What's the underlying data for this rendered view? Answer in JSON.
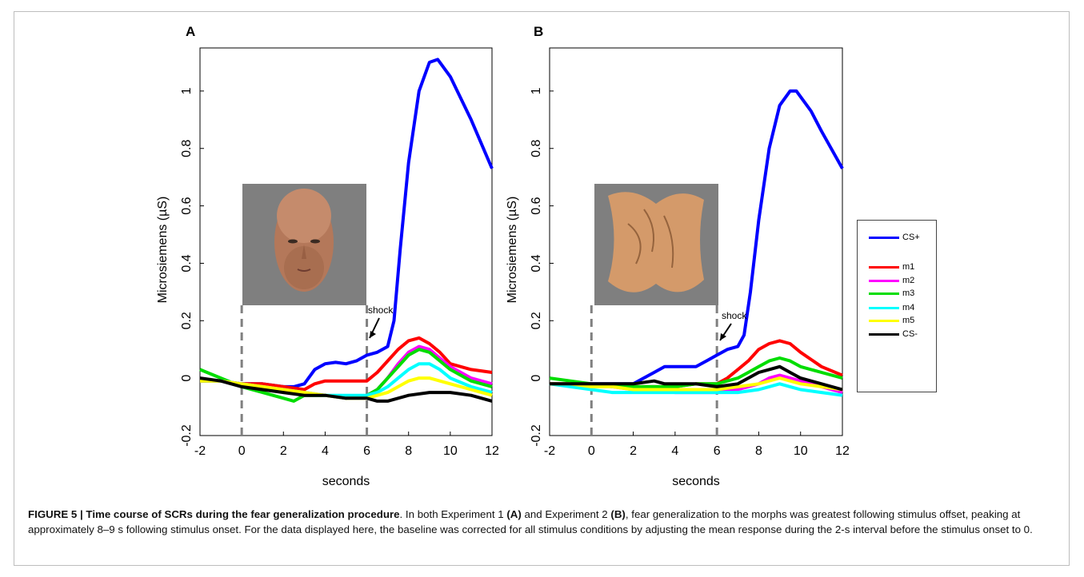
{
  "panels": [
    {
      "letter": "A"
    },
    {
      "letter": "B"
    }
  ],
  "legend": [
    {
      "label": "CS+",
      "color": "#0000ff"
    },
    {
      "label": "m1",
      "color": "#ff0000"
    },
    {
      "label": "m2",
      "color": "#ff00ff"
    },
    {
      "label": "m3",
      "color": "#00dd00"
    },
    {
      "label": "m4",
      "color": "#00ffff"
    },
    {
      "label": "m5",
      "color": "#ffff00"
    },
    {
      "label": "CS-",
      "color": "#000000"
    }
  ],
  "caption": {
    "figure_label": "FIGURE 5 | Time course of SCRs during the fear generalization procedure",
    "t1": ". In both Experiment 1 ",
    "a": "(A)",
    "t2": " and Experiment 2 ",
    "b": "(B)",
    "t3": ", fear generalization to the morphs was greatest following stimulus offset, peaking at approximately 8–9 s following stimulus onset. For the data displayed here, the baseline was corrected for all stimulus conditions by adjusting the mean response during the 2-s interval before the stimulus onset to 0."
  },
  "chart_data": [
    {
      "panel": "A",
      "type": "line",
      "xlabel": "seconds",
      "ylabel": "Microsiemens (µS)",
      "xlim": [
        -2,
        12
      ],
      "ylim": [
        -0.2,
        1.15
      ],
      "xticks": [
        -2,
        0,
        2,
        4,
        6,
        8,
        10,
        12
      ],
      "yticks": [
        -0.2,
        0,
        0.2,
        0.4,
        0.6,
        0.8,
        1
      ],
      "vlines": [
        0,
        6
      ],
      "annotation": "shock",
      "inset": "face",
      "series": [
        {
          "name": "CS+",
          "color": "#0000ff",
          "x": [
            -2,
            -1,
            0,
            1,
            2,
            2.5,
            3,
            3.5,
            4,
            4.5,
            5,
            5.5,
            6,
            6.5,
            7,
            7.3,
            7.6,
            8,
            8.5,
            9,
            9.4,
            10,
            11,
            12
          ],
          "y": [
            -0.01,
            -0.01,
            -0.02,
            -0.02,
            -0.03,
            -0.03,
            -0.02,
            0.03,
            0.05,
            0.055,
            0.05,
            0.06,
            0.08,
            0.09,
            0.11,
            0.2,
            0.45,
            0.75,
            1.0,
            1.1,
            1.11,
            1.05,
            0.9,
            0.73
          ]
        },
        {
          "name": "m1",
          "color": "#ff0000",
          "x": [
            -2,
            -1,
            0,
            1,
            2,
            3,
            3.5,
            4,
            5,
            6,
            6.5,
            7,
            7.5,
            8,
            8.5,
            9,
            9.5,
            10,
            11,
            12
          ],
          "y": [
            -0.01,
            -0.01,
            -0.02,
            -0.02,
            -0.03,
            -0.04,
            -0.02,
            -0.01,
            -0.01,
            -0.01,
            0.02,
            0.06,
            0.1,
            0.13,
            0.14,
            0.12,
            0.09,
            0.05,
            0.03,
            0.02
          ]
        },
        {
          "name": "m2",
          "color": "#ff00ff",
          "x": [
            -2,
            -1,
            0,
            1,
            2,
            3,
            4,
            5,
            6,
            6.5,
            7,
            7.5,
            8,
            8.5,
            9,
            9.5,
            10,
            11,
            12
          ],
          "y": [
            -0.01,
            -0.01,
            -0.02,
            -0.03,
            -0.04,
            -0.05,
            -0.06,
            -0.07,
            -0.06,
            -0.04,
            0.0,
            0.05,
            0.09,
            0.11,
            0.1,
            0.07,
            0.04,
            0.0,
            -0.02
          ]
        },
        {
          "name": "m3",
          "color": "#00dd00",
          "x": [
            -2,
            -1,
            0,
            1,
            2,
            2.5,
            3,
            4,
            5,
            6,
            6.5,
            7,
            7.5,
            8,
            8.5,
            9,
            9.5,
            10,
            11,
            12
          ],
          "y": [
            0.03,
            0.0,
            -0.03,
            -0.05,
            -0.07,
            -0.08,
            -0.06,
            -0.06,
            -0.07,
            -0.06,
            -0.04,
            0.0,
            0.04,
            0.08,
            0.1,
            0.09,
            0.06,
            0.03,
            -0.01,
            -0.03
          ]
        },
        {
          "name": "m4",
          "color": "#00ffff",
          "x": [
            -2,
            -1,
            0,
            1,
            2,
            3,
            4,
            5,
            6,
            6.5,
            7,
            7.5,
            8,
            8.5,
            9,
            9.5,
            10,
            11,
            12
          ],
          "y": [
            -0.01,
            -0.01,
            -0.02,
            -0.03,
            -0.04,
            -0.05,
            -0.06,
            -0.06,
            -0.06,
            -0.05,
            -0.03,
            0.0,
            0.03,
            0.05,
            0.05,
            0.03,
            0.0,
            -0.03,
            -0.05
          ]
        },
        {
          "name": "m5",
          "color": "#ffff00",
          "x": [
            -2,
            -1,
            0,
            1,
            2,
            3,
            4,
            5,
            6,
            6.5,
            7,
            7.5,
            8,
            8.5,
            9,
            9.5,
            10,
            11,
            12
          ],
          "y": [
            -0.01,
            -0.01,
            -0.02,
            -0.03,
            -0.04,
            -0.05,
            -0.06,
            -0.07,
            -0.07,
            -0.06,
            -0.05,
            -0.03,
            -0.01,
            0.0,
            0.0,
            -0.01,
            -0.02,
            -0.04,
            -0.06
          ]
        },
        {
          "name": "CS-",
          "color": "#000000",
          "x": [
            -2,
            -1,
            0,
            1,
            2,
            3,
            4,
            5,
            6,
            6.5,
            7,
            8,
            9,
            10,
            11,
            12
          ],
          "y": [
            0.0,
            -0.01,
            -0.03,
            -0.04,
            -0.05,
            -0.06,
            -0.06,
            -0.07,
            -0.07,
            -0.08,
            -0.08,
            -0.06,
            -0.05,
            -0.05,
            -0.06,
            -0.08
          ]
        }
      ]
    },
    {
      "panel": "B",
      "type": "line",
      "xlabel": "seconds",
      "ylabel": "Microsiemens (µS)",
      "xlim": [
        -2,
        12
      ],
      "ylim": [
        -0.2,
        1.15
      ],
      "xticks": [
        -2,
        0,
        2,
        4,
        6,
        8,
        10,
        12
      ],
      "yticks": [
        -0.2,
        0,
        0.2,
        0.4,
        0.6,
        0.8,
        1
      ],
      "vlines": [
        0,
        6
      ],
      "annotation": "shock",
      "inset": "blob",
      "series": [
        {
          "name": "CS+",
          "color": "#0000ff",
          "x": [
            -2,
            -1,
            0,
            1,
            2,
            2.5,
            3,
            3.5,
            4,
            5,
            5.5,
            6,
            6.5,
            7,
            7.3,
            7.6,
            8,
            8.5,
            9,
            9.5,
            9.8,
            10.5,
            11,
            12
          ],
          "y": [
            -0.02,
            -0.02,
            -0.02,
            -0.02,
            -0.02,
            0.0,
            0.02,
            0.04,
            0.04,
            0.04,
            0.06,
            0.08,
            0.1,
            0.11,
            0.15,
            0.3,
            0.55,
            0.8,
            0.95,
            1.0,
            1.0,
            0.93,
            0.86,
            0.73
          ]
        },
        {
          "name": "m1",
          "color": "#ff0000",
          "x": [
            -2,
            -1,
            0,
            1,
            2,
            3,
            4,
            5,
            6,
            6.5,
            7,
            7.5,
            8,
            8.5,
            9,
            9.5,
            10,
            11,
            12
          ],
          "y": [
            -0.02,
            -0.02,
            -0.02,
            -0.03,
            -0.03,
            -0.03,
            -0.03,
            -0.02,
            -0.02,
            0.0,
            0.03,
            0.06,
            0.1,
            0.12,
            0.13,
            0.12,
            0.09,
            0.04,
            0.01
          ]
        },
        {
          "name": "m2",
          "color": "#ff00ff",
          "x": [
            -2,
            -1,
            0,
            1,
            2,
            3,
            4,
            5,
            6,
            7,
            8,
            8.5,
            9,
            9.5,
            10,
            11,
            12
          ],
          "y": [
            -0.02,
            -0.02,
            -0.02,
            -0.03,
            -0.04,
            -0.04,
            -0.05,
            -0.05,
            -0.05,
            -0.04,
            -0.02,
            0.0,
            0.01,
            0.0,
            -0.01,
            -0.03,
            -0.05
          ]
        },
        {
          "name": "m3",
          "color": "#00dd00",
          "x": [
            -2,
            -1,
            0,
            1,
            2,
            3,
            4,
            5,
            6,
            7,
            7.5,
            8,
            8.5,
            9,
            9.5,
            10,
            11,
            12
          ],
          "y": [
            0.0,
            -0.01,
            -0.02,
            -0.03,
            -0.03,
            -0.03,
            -0.03,
            -0.02,
            -0.02,
            0.0,
            0.02,
            0.04,
            0.06,
            0.07,
            0.06,
            0.04,
            0.02,
            0.0
          ]
        },
        {
          "name": "m4",
          "color": "#00ffff",
          "x": [
            -2,
            -1,
            0,
            1,
            2,
            3,
            4,
            5,
            6,
            7,
            8,
            8.5,
            9,
            9.5,
            10,
            11,
            12
          ],
          "y": [
            -0.02,
            -0.03,
            -0.04,
            -0.05,
            -0.05,
            -0.05,
            -0.05,
            -0.05,
            -0.05,
            -0.05,
            -0.04,
            -0.03,
            -0.02,
            -0.03,
            -0.04,
            -0.05,
            -0.06
          ]
        },
        {
          "name": "m5",
          "color": "#ffff00",
          "x": [
            -2,
            -1,
            0,
            1,
            2,
            3,
            4,
            5,
            6,
            7,
            8,
            8.5,
            9,
            9.5,
            10,
            11,
            12
          ],
          "y": [
            -0.02,
            -0.02,
            -0.03,
            -0.03,
            -0.04,
            -0.04,
            -0.04,
            -0.04,
            -0.04,
            -0.03,
            -0.02,
            -0.01,
            0.0,
            -0.01,
            -0.02,
            -0.03,
            -0.04
          ]
        },
        {
          "name": "CS-",
          "color": "#000000",
          "x": [
            -2,
            -1,
            0,
            1,
            2,
            3,
            3.5,
            4,
            5,
            6,
            7,
            7.5,
            8,
            8.5,
            9,
            9.5,
            10,
            11,
            12
          ],
          "y": [
            -0.02,
            -0.02,
            -0.02,
            -0.02,
            -0.02,
            -0.01,
            -0.02,
            -0.02,
            -0.02,
            -0.03,
            -0.02,
            0.0,
            0.02,
            0.03,
            0.04,
            0.02,
            0.0,
            -0.02,
            -0.04
          ]
        }
      ]
    }
  ]
}
